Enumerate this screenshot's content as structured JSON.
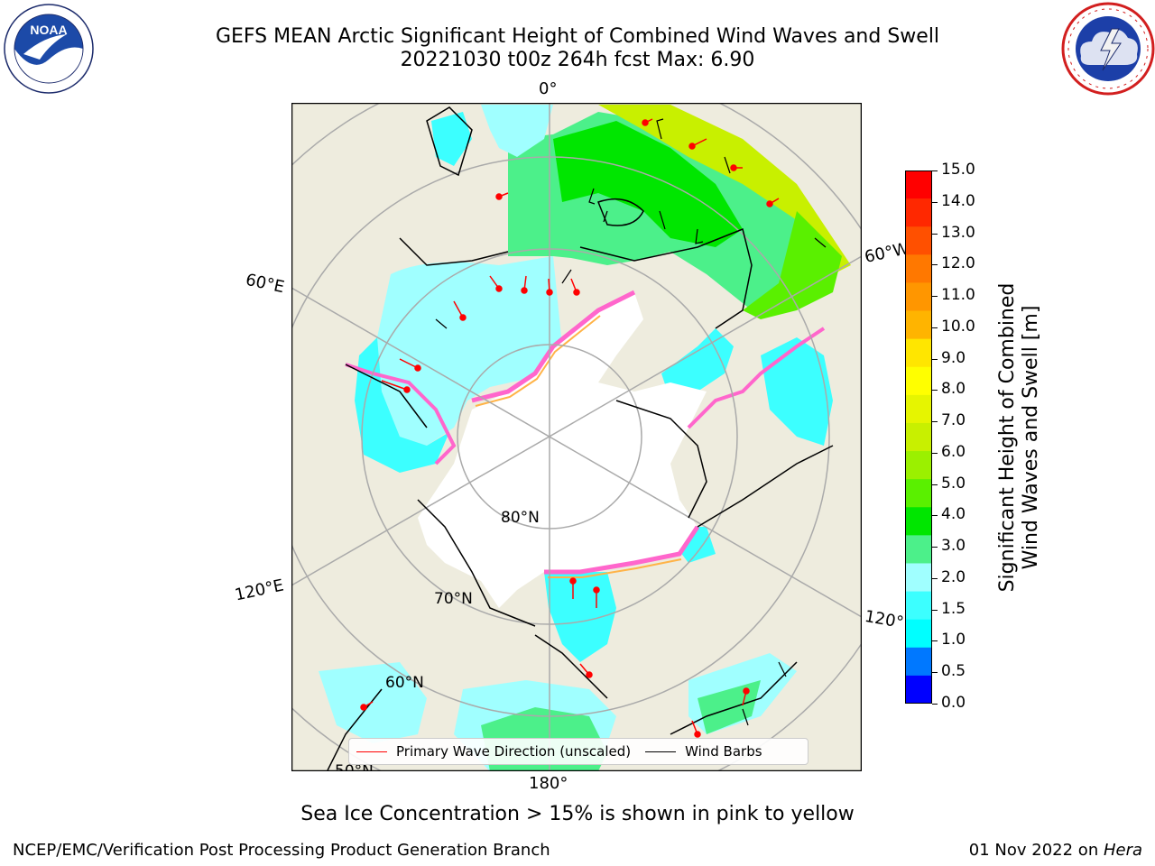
{
  "header": {
    "title_line1": "GEFS MEAN Arctic Significant Height of Combined Wind Waves and Swell",
    "title_line2": "20221030 t00z 264h fcst   Max: 6.90"
  },
  "logos": {
    "noaa": {
      "center_text": "NOAA",
      "ring_text": "NATIONAL OCEANIC AND ATMOSPHERIC ADMINISTRATION · U.S. DEPARTMENT OF COMMERCE"
    },
    "nws": {
      "ring_text": "NATIONAL WEATHER SERVICE"
    }
  },
  "map": {
    "land_color": "#eeecde",
    "ice_color": "#ffffff",
    "longitude_labels": {
      "top": "0°",
      "right_upper": "60°W",
      "right_lower": "120°W",
      "left_upper": "60°E",
      "left_lower": "120°E",
      "bottom": "180°"
    },
    "latitude_labels": {
      "lat80": "80°N",
      "lat70": "70°N",
      "lat60": "60°N",
      "lat50": "50°N"
    },
    "legend": {
      "wave_direction": "Primary Wave Direction (unscaled)",
      "wind_barbs": "Wind Barbs",
      "wave_direction_color": "#ff0000",
      "wind_barbs_color": "#000000"
    }
  },
  "colorbar": {
    "label_line1": "Significant Height of Combined",
    "label_line2": "Wind Waves and Swell [m]",
    "ticks": [
      "15.0",
      "14.0",
      "13.0",
      "12.0",
      "11.0",
      "10.0",
      "9.0",
      "8.0",
      "7.0",
      "6.0",
      "5.0",
      "4.0",
      "3.0",
      "2.0",
      "1.5",
      "1.0",
      "0.5",
      "0.0"
    ],
    "colors_top_to_bottom": [
      "#ff0000",
      "#ff2800",
      "#ff5000",
      "#ff7800",
      "#ff9600",
      "#ffb400",
      "#ffe600",
      "#ffff00",
      "#e6f500",
      "#c8f000",
      "#9bf000",
      "#5af000",
      "#00e600",
      "#4cf08a",
      "#a0ffff",
      "#3cffff",
      "#00ffff",
      "#0078ff",
      "#0000ff"
    ]
  },
  "notes": {
    "sea_ice": "Sea Ice Concentration > 15% is shown in pink to yellow"
  },
  "footer": {
    "left": "NCEP/EMC/Verification Post Processing Product Generation Branch",
    "right_prefix": "01 Nov 2022 on ",
    "right_machine": "Hera"
  }
}
